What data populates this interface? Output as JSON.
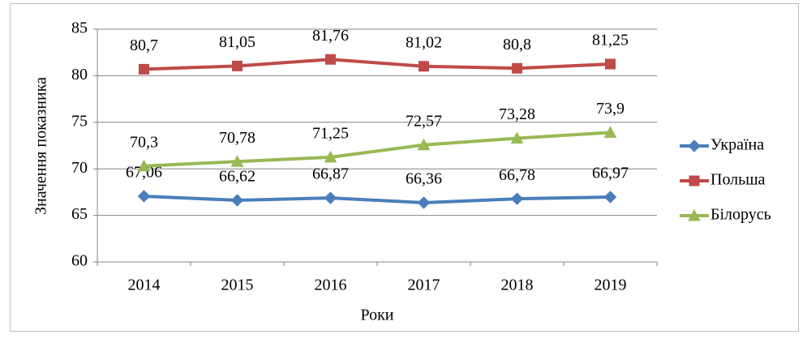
{
  "chart_data": {
    "type": "line",
    "x_label": "Роки",
    "y_label": "Значення показника",
    "categories": [
      "2014",
      "2015",
      "2016",
      "2017",
      "2018",
      "2019"
    ],
    "series": [
      {
        "name": "Україна",
        "color": "#4a7ebb",
        "marker": "diamond",
        "values": [
          67.06,
          66.62,
          66.87,
          66.36,
          66.78,
          66.97
        ],
        "value_labels": [
          "67,06",
          "66,62",
          "66,87",
          "66,36",
          "66,78",
          "66,97"
        ]
      },
      {
        "name": "Польша",
        "color": "#be4b48",
        "marker": "square",
        "values": [
          80.7,
          81.05,
          81.76,
          81.02,
          80.8,
          81.25
        ],
        "value_labels": [
          "80,7",
          "81,05",
          "81,76",
          "81,02",
          "80,8",
          "81,25"
        ]
      },
      {
        "name": "Білорусь",
        "color": "#98b954",
        "marker": "triangle",
        "values": [
          70.3,
          70.78,
          71.25,
          72.57,
          73.28,
          73.9
        ],
        "value_labels": [
          "70,3",
          "70,78",
          "71,25",
          "72,57",
          "73,28",
          "73,9"
        ]
      }
    ],
    "ylim": [
      60,
      85
    ],
    "yticks": [
      60,
      65,
      70,
      75,
      80,
      85
    ],
    "grid": true,
    "legend": "right"
  }
}
